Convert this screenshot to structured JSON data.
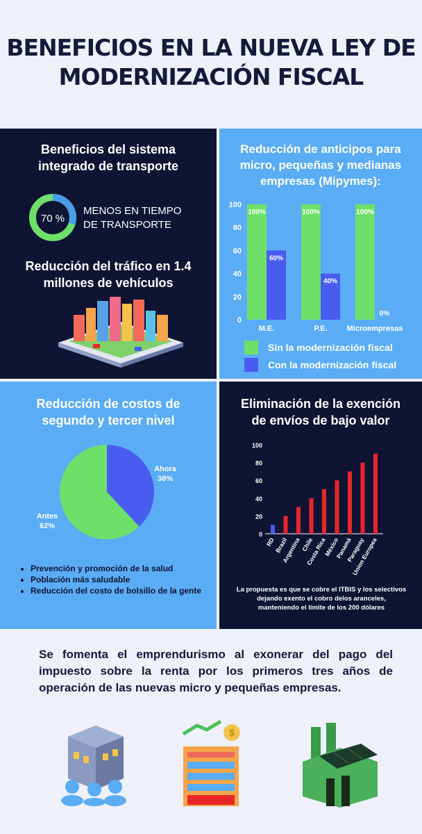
{
  "title_line1": "BENEFICIOS EN LA NUEVA LEY DE",
  "title_line2": "MODERNIZACIÓN FISCAL",
  "transport": {
    "title_line1": "Beneficios del sistema",
    "title_line2": "integrado de transporte",
    "donut_label": "70 %",
    "donut_value": 70,
    "donut_text_line1": "MENOS EN TIEMPO",
    "donut_text_line2": "DE TRANSPORTE",
    "traffic_line1": "Reducción del tráfico en 1.4",
    "traffic_line2": "millones de vehículos",
    "colors": {
      "ring": "#6ee06a",
      "ring_part": "#4a9ce8"
    }
  },
  "anticipos": {
    "title_line1": "Reducción de anticipos para",
    "title_line2": "micro, pequeñas y medianas",
    "title_line3": "empresas (Mipymes):"
  },
  "costos": {
    "title_line1": "Reducción de costos de",
    "title_line2": "segundo y tercer nivel",
    "bullets": [
      "Prevención y promoción de la salud",
      "Población más saludable",
      "Reducción del costo de bolsillo de la gente"
    ]
  },
  "envios": {
    "title_line1": "Eliminación de la exención",
    "title_line2": "de envíos de bajo valor",
    "note_line1": "La propuesta es que se cobre el ITBIS y los selectivos",
    "note_line2": "dejando exento el cobro delos aranceles,",
    "note_line3": "manteniendo el límite de los 200 dólares"
  },
  "bottom_text": "Se fomenta el emprendurismo al exonerar del pago del impuesto sobre la renta por los primeros tres años de operación de las nuevas micro y pequeñas empresas.",
  "icons": [
    "building-people-icon",
    "building-growth-icon",
    "green-factory-icon"
  ],
  "chart_data": [
    {
      "type": "bar",
      "categories": [
        "M.E.",
        "P.E.",
        "Microempresas"
      ],
      "series": [
        {
          "name": "Sin la modernización fiscal",
          "values": [
            100,
            100,
            100
          ],
          "labels": [
            "100%",
            "100%",
            "100%"
          ],
          "color": "#6ee06a"
        },
        {
          "name": "Con la modernización fiscal",
          "values": [
            60,
            40,
            0
          ],
          "labels": [
            "60%",
            "40%",
            "0%"
          ],
          "color": "#4a5cf0"
        }
      ],
      "ylim": [
        0,
        100
      ],
      "yticks": [
        0,
        20,
        40,
        60,
        80,
        100
      ],
      "legend": "bottom"
    },
    {
      "type": "pie",
      "slices": [
        {
          "label": "Ahora",
          "pct_label": "38%",
          "value": 38,
          "color": "#4a5cf0"
        },
        {
          "label": "Antes",
          "pct_label": "62%",
          "value": 62,
          "color": "#6ee06a"
        }
      ]
    },
    {
      "type": "bar",
      "categories": [
        "RD",
        "Brazil",
        "Argentina",
        "Chile",
        "Costa Rica",
        "México",
        "Panamá",
        "Paraguay",
        "Union Europea"
      ],
      "values": [
        10,
        20,
        30,
        40,
        50,
        60,
        70,
        80,
        90
      ],
      "colors": [
        "#4a5cf0",
        "#e8262a",
        "#e8262a",
        "#e8262a",
        "#e8262a",
        "#e8262a",
        "#e8262a",
        "#e8262a",
        "#e8262a"
      ],
      "ylim": [
        0,
        100
      ],
      "yticks": [
        0,
        20,
        40,
        60,
        80,
        100
      ]
    }
  ]
}
